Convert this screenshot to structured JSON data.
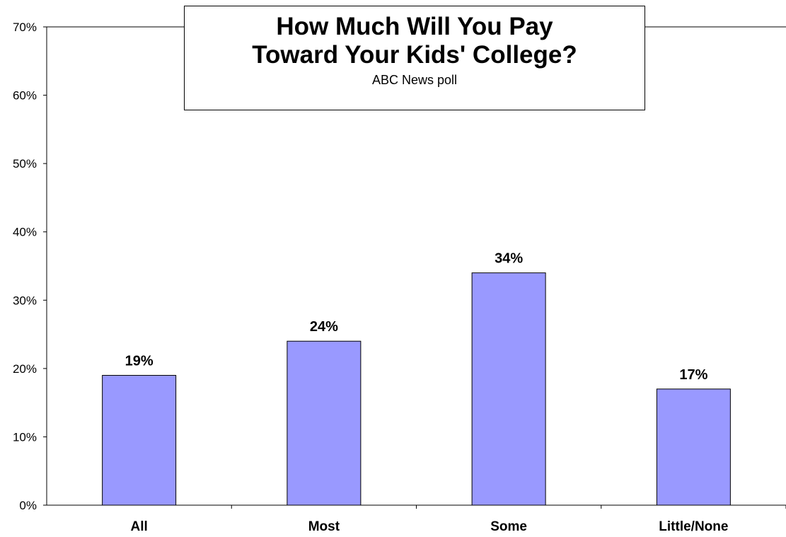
{
  "chart_data": {
    "type": "bar",
    "title_lines": [
      "How Much Will You Pay",
      "Toward Your Kids' College?"
    ],
    "subtitle": "ABC News poll",
    "categories": [
      "All",
      "Most",
      "Some",
      "Little/None"
    ],
    "values": [
      19,
      24,
      34,
      17
    ],
    "value_labels": [
      "19%",
      "24%",
      "34%",
      "17%"
    ],
    "ylim": [
      0,
      70
    ],
    "y_ticks": [
      0,
      10,
      20,
      30,
      40,
      50,
      60,
      70
    ],
    "y_tick_labels": [
      "0%",
      "10%",
      "20%",
      "30%",
      "40%",
      "50%",
      "60%",
      "70%"
    ],
    "grid": false,
    "legend": "none",
    "bar_color": "#9999ff",
    "bar_border_color": "#000000"
  }
}
